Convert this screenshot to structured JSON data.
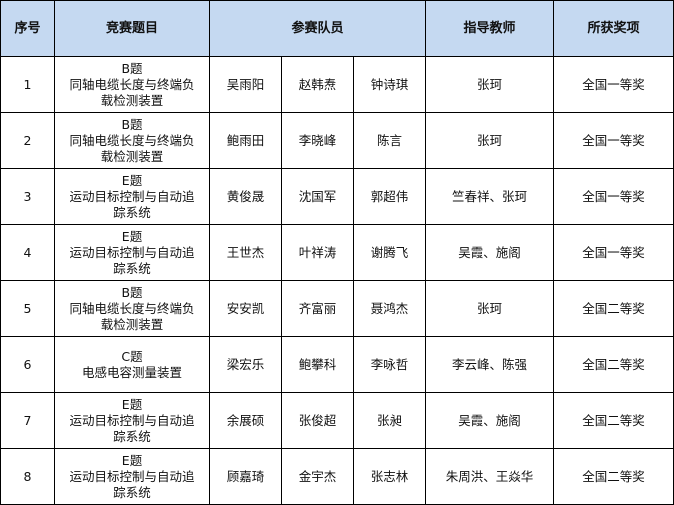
{
  "header": {
    "index": "序号",
    "topic": "竞赛题目",
    "members": "参赛队员",
    "advisor": "指导教师",
    "award": "所获奖项"
  },
  "header_color": "#c5d9f1",
  "rows": [
    {
      "index": "1",
      "label": "B题",
      "title": "同轴电缆长度与终端负载检测装置",
      "members": [
        "吴雨阳",
        "赵韩焘",
        "钟诗琪"
      ],
      "advisor": "张珂",
      "award": "全国一等奖"
    },
    {
      "index": "2",
      "label": "B题",
      "title": "同轴电缆长度与终端负载检测装置",
      "members": [
        "鲍雨田",
        "李晓峰",
        "陈言"
      ],
      "advisor": "张珂",
      "award": "全国一等奖"
    },
    {
      "index": "3",
      "label": "E题",
      "title": "运动目标控制与自动追踪系统",
      "members": [
        "黄俊晟",
        "沈国军",
        "郭超伟"
      ],
      "advisor": "竺春祥、张珂",
      "award": "全国一等奖"
    },
    {
      "index": "4",
      "label": "E题",
      "title": "运动目标控制与自动追踪系统",
      "members": [
        "王世杰",
        "叶祥涛",
        "谢腾飞"
      ],
      "advisor": "吴霞、施阁",
      "award": "全国一等奖"
    },
    {
      "index": "5",
      "label": "B题",
      "title": "同轴电缆长度与终端负载检测装置",
      "members": [
        "安安凯",
        "齐富丽",
        "聂鸿杰"
      ],
      "advisor": "张珂",
      "award": "全国二等奖"
    },
    {
      "index": "6",
      "label": "C题",
      "title": "电感电容测量装置",
      "members": [
        "梁宏乐",
        "鲍攀科",
        "李咏哲"
      ],
      "advisor": "李云峰、陈强",
      "award": "全国二等奖"
    },
    {
      "index": "7",
      "label": "E题",
      "title": "运动目标控制与自动追踪系统",
      "members": [
        "余展硕",
        "张俊超",
        "张昶"
      ],
      "advisor": "吴霞、施阁",
      "award": "全国二等奖"
    },
    {
      "index": "8",
      "label": "E题",
      "title": "运动目标控制与自动追踪系统",
      "members": [
        "顾嘉琦",
        "金宇杰",
        "张志林"
      ],
      "advisor": "朱周洪、王焱华",
      "award": "全国二等奖"
    }
  ]
}
